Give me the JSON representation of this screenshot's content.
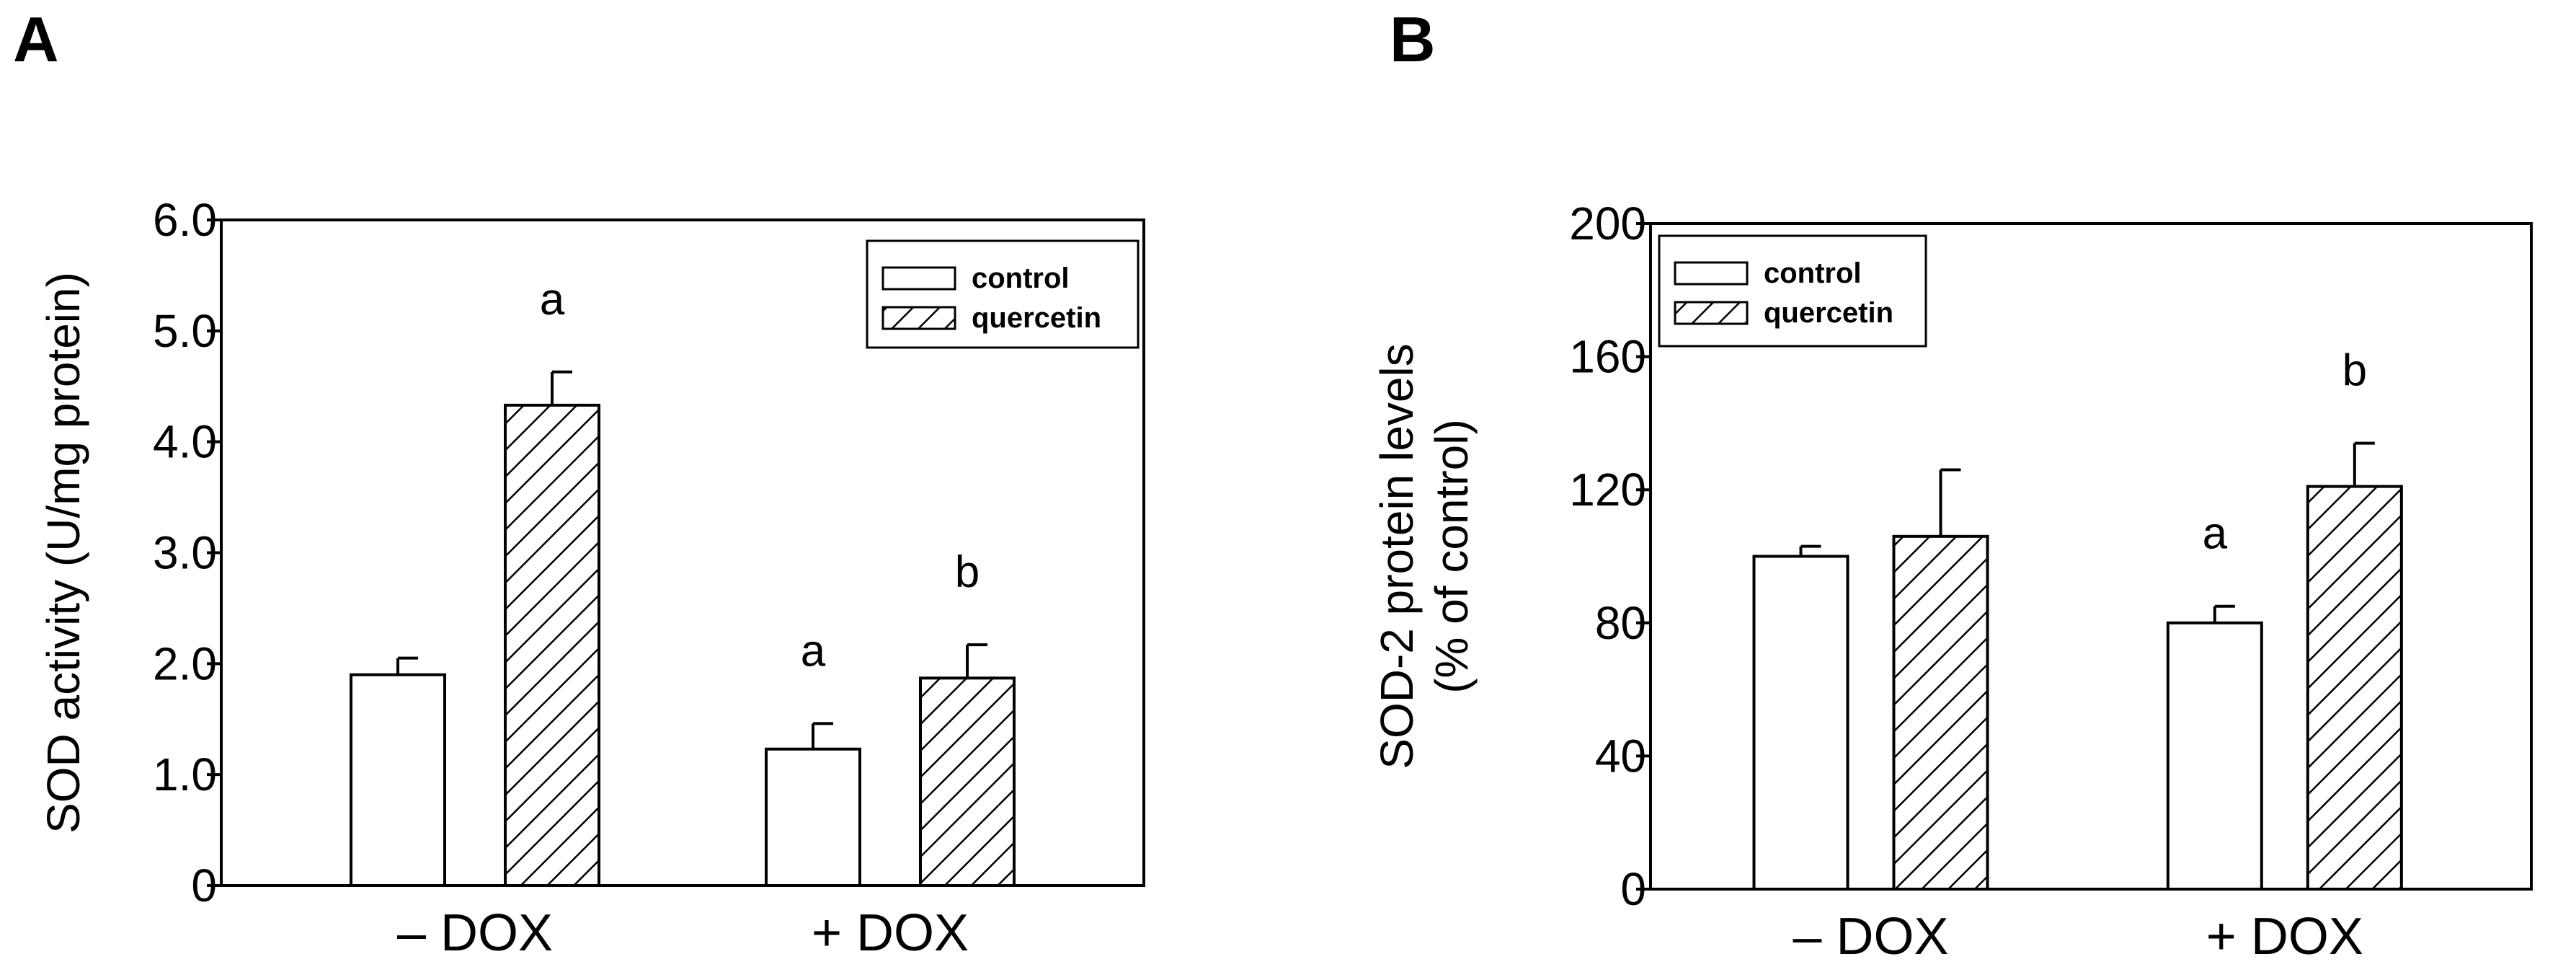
{
  "colors": {
    "ink": "#000000",
    "bar_fill": "#ffffff",
    "hatch": "#000000"
  },
  "chart_data": [
    {
      "panel_label": "A",
      "type": "bar",
      "categories": [
        "– DOX",
        "+ DOX"
      ],
      "series": [
        {
          "name": "control",
          "pattern": "open",
          "values": [
            1.9,
            1.23
          ],
          "errors": [
            0.15,
            0.23
          ]
        },
        {
          "name": "quercetin",
          "pattern": "hatched",
          "values": [
            4.33,
            1.87
          ],
          "errors": [
            0.3,
            0.3
          ]
        }
      ],
      "significance": [
        {
          "category": 0,
          "series": 1,
          "text": "a"
        },
        {
          "category": 1,
          "series": 0,
          "text": "a"
        },
        {
          "category": 1,
          "series": 1,
          "text": "b"
        }
      ],
      "ylabel": "SOD activity (U/mg protein)",
      "ylim": [
        0,
        6.0
      ],
      "yticks": [
        0,
        1.0,
        2.0,
        3.0,
        4.0,
        5.0,
        6.0
      ],
      "ytick_labels": [
        "0",
        "1.0",
        "2.0",
        "3.0",
        "4.0",
        "5.0",
        "6.0"
      ],
      "legend": {
        "position": "top-right",
        "entries": [
          "control",
          "quercetin"
        ]
      },
      "grid": false
    },
    {
      "panel_label": "B",
      "type": "bar",
      "categories": [
        "– DOX",
        "+ DOX"
      ],
      "series": [
        {
          "name": "control",
          "pattern": "open",
          "values": [
            100,
            80
          ],
          "errors": [
            3,
            5
          ]
        },
        {
          "name": "quercetin",
          "pattern": "hatched",
          "values": [
            106,
            121
          ],
          "errors": [
            20,
            13
          ]
        }
      ],
      "significance": [
        {
          "category": 1,
          "series": 0,
          "text": "a"
        },
        {
          "category": 1,
          "series": 1,
          "text": "b"
        }
      ],
      "ylabel": "SOD-2 protein levels",
      "ylabel2": "(% of control)",
      "ylim": [
        0,
        200
      ],
      "yticks": [
        0,
        40,
        80,
        120,
        160,
        200
      ],
      "ytick_labels": [
        "0",
        "40",
        "80",
        "120",
        "160",
        "200"
      ],
      "legend": {
        "position": "top-left",
        "entries": [
          "control",
          "quercetin"
        ]
      },
      "grid": false
    }
  ]
}
